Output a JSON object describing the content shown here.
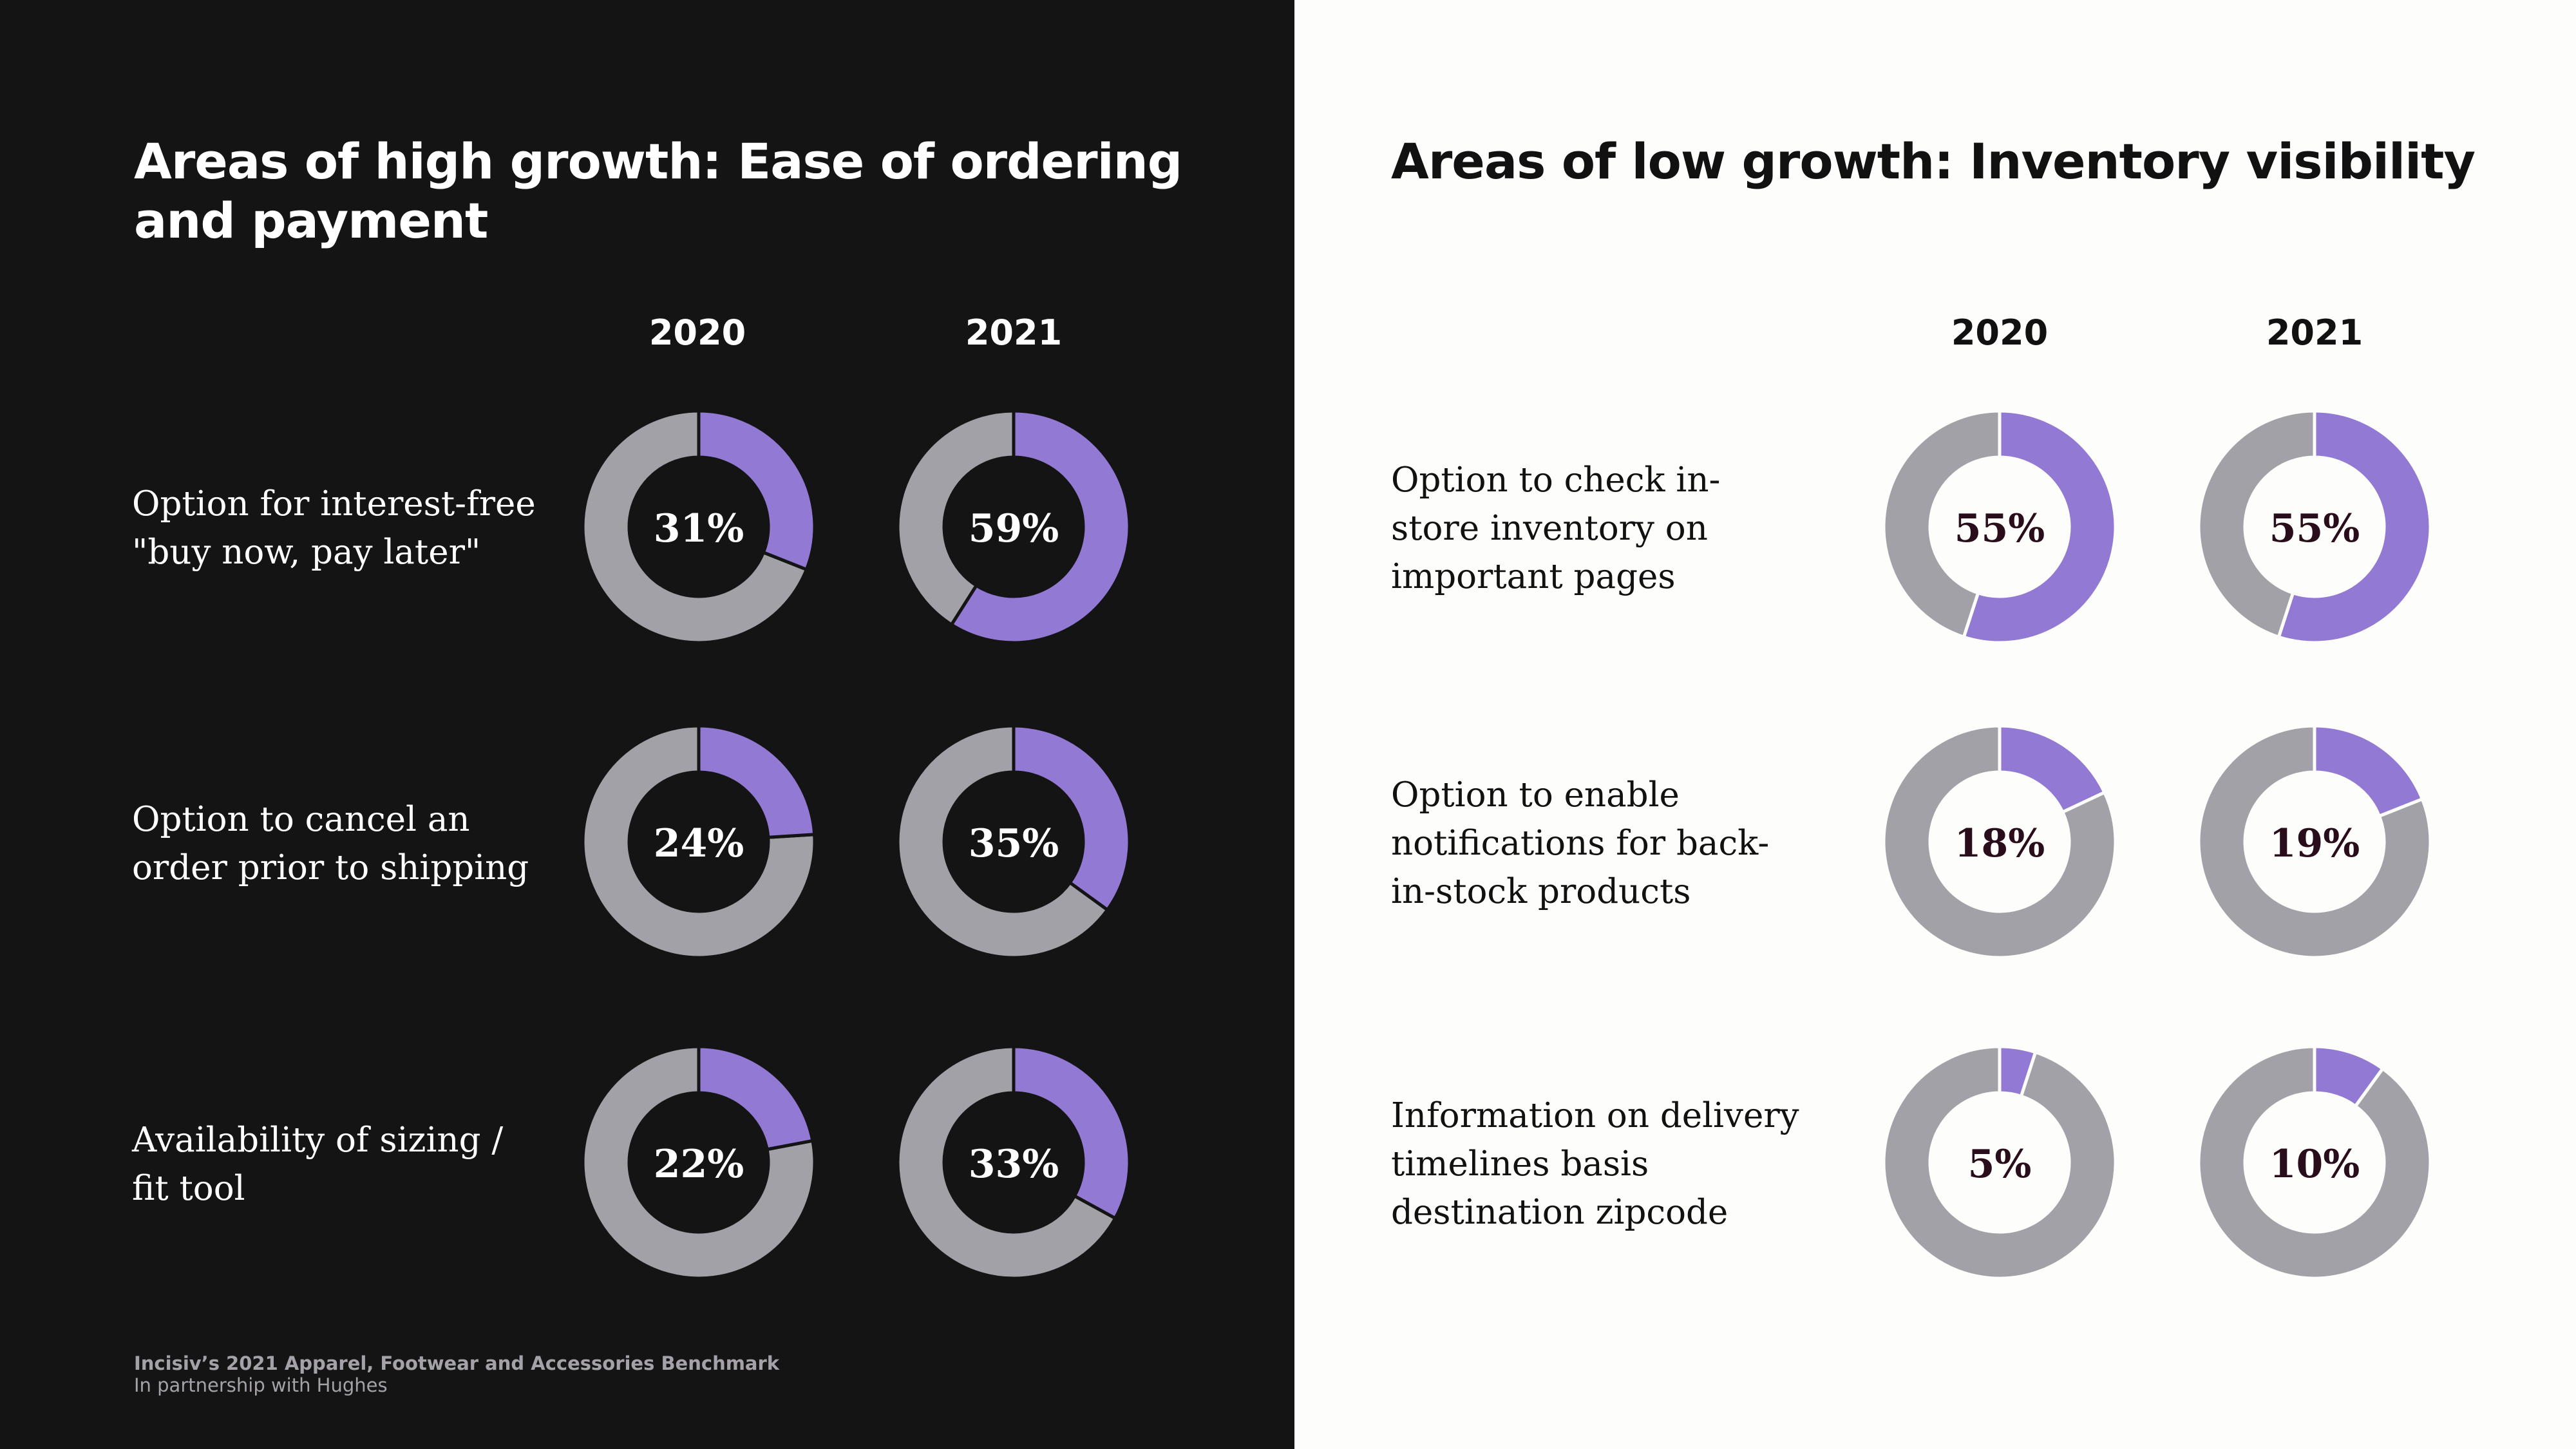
{
  "colors": {
    "filled": "#9279d4",
    "remaining": "#a2a1a7",
    "left_bg": "#151415",
    "right_bg": "#fdfdfb"
  },
  "left": {
    "title": "Areas of high growth: Ease of ordering and payment",
    "years": [
      "2020",
      "2021"
    ],
    "rows": [
      {
        "label": "Option for interest-free \"buy now, pay later\""
      },
      {
        "label": "Option to cancel an order prior to shipping"
      },
      {
        "label": "Availability of sizing / fit tool"
      }
    ]
  },
  "right": {
    "title": "Areas of low growth: Inventory visibility",
    "years": [
      "2020",
      "2021"
    ],
    "rows": [
      {
        "label": "Option to check in-store inventory on important pages"
      },
      {
        "label": "Option to enable notifications for back-in-stock products"
      },
      {
        "label": "Information on delivery timelines basis destination zipcode"
      }
    ]
  },
  "footer": {
    "title": "Incisiv’s 2021 Apparel, Footwear and Accessories Benchmark",
    "subtitle": "In partnership with Hughes"
  },
  "chart_data": [
    {
      "type": "pie",
      "title": "Areas of high growth: Ease of ordering and payment",
      "categories": [
        "Option for interest-free \"buy now, pay later\"",
        "Option to cancel an order prior to shipping",
        "Availability of sizing / fit tool"
      ],
      "series": [
        {
          "name": "2020",
          "values": [
            31,
            24,
            22
          ],
          "labels": [
            "31%",
            "24%",
            "22%"
          ]
        },
        {
          "name": "2021",
          "values": [
            59,
            35,
            33
          ],
          "labels": [
            "59%",
            "35%",
            "33%"
          ]
        }
      ]
    },
    {
      "type": "pie",
      "title": "Areas of low growth: Inventory visibility",
      "categories": [
        "Option to check in-store inventory on important pages",
        "Option to enable notifications for back-in-stock products",
        "Information on delivery timelines basis destination zipcode"
      ],
      "series": [
        {
          "name": "2020",
          "values": [
            55,
            18,
            5
          ],
          "labels": [
            "55%",
            "18%",
            "5%"
          ]
        },
        {
          "name": "2021",
          "values": [
            55,
            19,
            10
          ],
          "labels": [
            "55%",
            "19%",
            "10%"
          ]
        }
      ]
    }
  ]
}
